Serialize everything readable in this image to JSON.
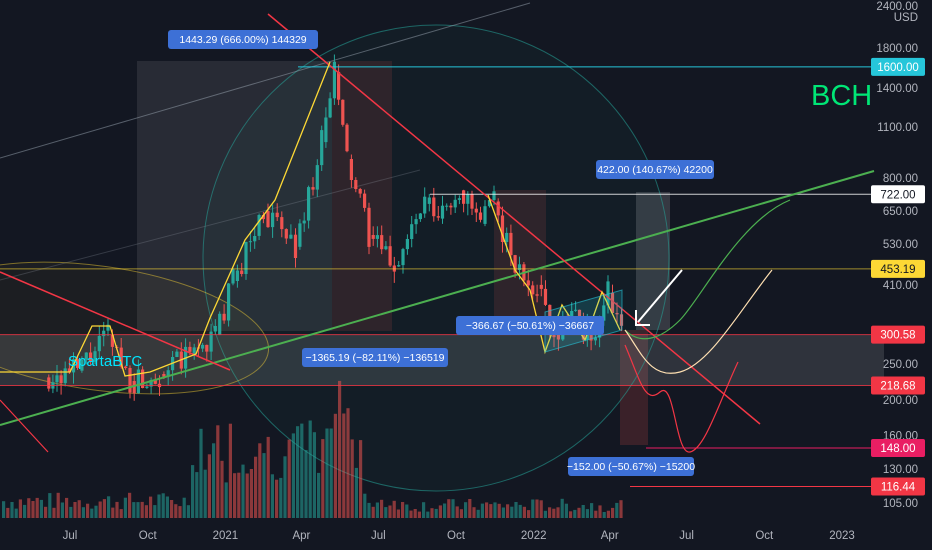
{
  "chart_data": {
    "type": "candlestick",
    "symbol": "BCH",
    "author_tag": "SpartaBTC",
    "currency_label": "USD",
    "scale": "log",
    "ylim": [
      100,
      2400
    ],
    "y_ticks": [
      105,
      130,
      160,
      200,
      250,
      300,
      410,
      530,
      650,
      800,
      1100,
      1400,
      1800,
      2400
    ],
    "x_ticks": [
      "Jul",
      "Oct",
      "2021",
      "Apr",
      "Jul",
      "Oct",
      "2022",
      "Apr",
      "Jul",
      "Oct",
      "2023"
    ],
    "x_tick_dates": [
      "2020-07-01",
      "2020-10-01",
      "2021-01-01",
      "2021-04-01",
      "2021-07-01",
      "2021-10-01",
      "2022-01-01",
      "2022-04-01",
      "2022-07-01",
      "2022-10-01",
      "2023-01-01"
    ],
    "price_levels": [
      {
        "value": 1600.0,
        "label": "1600.00",
        "color": "#26c6da"
      },
      {
        "value": 722.0,
        "label": "722.00",
        "color": "#ffffff"
      },
      {
        "value": 453.19,
        "label": "453.19",
        "color": "#fdd835"
      },
      {
        "value": 300.58,
        "label": "300.58",
        "color": "#f23645"
      },
      {
        "value": 218.68,
        "label": "218.68",
        "color": "#f23645"
      },
      {
        "value": 148.0,
        "label": "148.00",
        "color": "#e91e63"
      },
      {
        "value": 116.44,
        "label": "116.44",
        "color": "#f23645"
      }
    ],
    "measurements": [
      {
        "text": "1443.29 (666.00%) 144329"
      },
      {
        "text": "422.00 (140.67%) 42200"
      },
      {
        "text": "−1365.19 (−82.11%) −136519"
      },
      {
        "text": "−366.67 (−50.61%) −36667"
      },
      {
        "text": "−152.00 (−50.67%) −15200"
      }
    ],
    "colors": {
      "background": "#131722",
      "up": "#26a69a",
      "down": "#ef5350",
      "measure_box": "#3d70d6",
      "trend_green": "#4caf50",
      "trend_red": "#f23645",
      "pattern_yellow": "#fdd835",
      "symbol_text": "#00e676"
    }
  }
}
